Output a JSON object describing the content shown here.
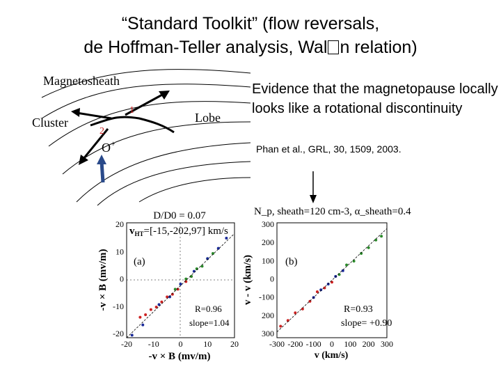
{
  "title": {
    "line1": "“Standard Toolkit” (flow reversals,",
    "line2_before": "de Hoffman-Teller analysis, Wal",
    "line2_after": "n relation)"
  },
  "evidence": "Evidence that the magnetopause locally looks like a rotational discontinuity",
  "reference": "Phan et al., GRL, 30, 1509, 2003.",
  "schematic": {
    "magnetosheath": "Magnetosheath",
    "cluster": "Cluster",
    "lobe": "Lobe",
    "label_1": "1",
    "label_2": "2",
    "ion": "O",
    "ion_charge": "+"
  },
  "colors": {
    "red": "#cc2222",
    "green": "#2a8a2a",
    "blue": "#1a2a9a",
    "arrow_blue": "#2a4a8a"
  },
  "panel_a": {
    "header": "D/D0 = 0.07",
    "vht": "v",
    "vht_sub": "HT",
    "vht_value": "=[-15,-202,97] km/s",
    "label": "(a)",
    "R": "R=0.96",
    "slope": "slope=1.04",
    "ylabel": "-v × B (mv/m)",
    "xlabel": "-v × B (mv/m)",
    "yticks": [
      "20",
      "10",
      "0",
      "-10",
      "-20"
    ],
    "xticks": [
      "-20",
      "-10",
      "0",
      "10",
      "20"
    ]
  },
  "panel_b": {
    "header": "N_p, sheath=120 cm-3, α_sheath=0.4",
    "label": "(b)",
    "R": "R=0.93",
    "slope": "slope= +0.90",
    "ylabel": "v - v (km/s)",
    "xlabel": "v (km/s)",
    "yticks": [
      "300",
      "200",
      "100",
      "0",
      "-100",
      "200",
      "300"
    ],
    "xticks": [
      "-300",
      "-200",
      "-100",
      "0",
      "100",
      "200",
      "300"
    ]
  },
  "chart_data": [
    {
      "type": "scatter",
      "title": "D/D0 = 0.07",
      "xlabel": "-vHT × Bi (mv/m)",
      "ylabel": "-vi × Bi (mv/m)",
      "xlim": [
        -20,
        20
      ],
      "ylim": [
        -20,
        25
      ],
      "fit": {
        "R": 0.96,
        "slope": 1.04
      },
      "series": [
        {
          "color": "#cc2222",
          "x": [
            -15,
            -13,
            -11,
            -9,
            -7,
            -5,
            -3,
            -1,
            2,
            4
          ],
          "y": [
            -12,
            -11,
            -9,
            -8,
            -6,
            -4,
            -3,
            -1,
            2,
            4
          ]
        },
        {
          "color": "#2a8a2a",
          "x": [
            -2,
            0,
            2,
            4,
            6,
            8,
            10,
            12
          ],
          "y": [
            -1,
            1,
            3,
            4,
            7,
            8,
            11,
            13
          ]
        },
        {
          "color": "#1a2a9a",
          "x": [
            -18,
            -14,
            -8,
            -4,
            0,
            5,
            10,
            14,
            17
          ],
          "y": [
            -19,
            -15,
            -7,
            -4,
            1,
            6,
            11,
            15,
            19
          ]
        }
      ]
    },
    {
      "type": "scatter",
      "title": "Np, sheath=120 cm-3, αsheath=0.4",
      "xlabel": "vA (km/s)",
      "ylabel": "vi - vHT (km/s)",
      "xlim": [
        -300,
        300
      ],
      "ylim": [
        -300,
        300
      ],
      "fit": {
        "R": 0.93,
        "slope": 0.9
      },
      "series": [
        {
          "color": "#cc2222",
          "x": [
            -280,
            -240,
            -200,
            -160,
            -120,
            -80,
            -40,
            0
          ],
          "y": [
            -240,
            -210,
            -170,
            -150,
            -110,
            -60,
            -40,
            -10
          ]
        },
        {
          "color": "#2a8a2a",
          "x": [
            40,
            80,
            120,
            160,
            200,
            240,
            270
          ],
          "y": [
            30,
            80,
            100,
            140,
            170,
            210,
            230
          ]
        },
        {
          "color": "#1a2a9a",
          "x": [
            -100,
            -60,
            -20,
            20,
            60
          ],
          "y": [
            -90,
            -50,
            -20,
            20,
            50
          ]
        }
      ]
    }
  ]
}
